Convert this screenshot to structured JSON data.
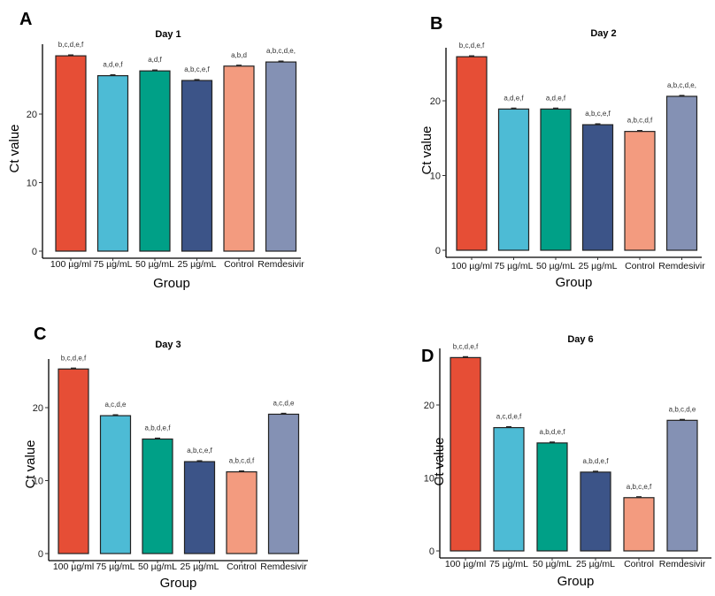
{
  "chart_data": [
    {
      "type": "bar",
      "panel": "A",
      "title": "Day 1",
      "xlabel": "Group",
      "ylabel": "Ct value",
      "categories": [
        "100 µg/mL",
        "75 µg/mL",
        "50 µg/mL",
        "25 µg/mL",
        "Control",
        "Remdesivir"
      ],
      "values": [
        28.5,
        25.6,
        26.3,
        24.9,
        27.0,
        27.6
      ],
      "annotations": [
        "b,c,d,e,f",
        "a,d,e,f",
        "a,d,f",
        "a,b,c,e,f",
        "a,b,d",
        "a,b,c,d,e,"
      ],
      "yticks": [
        0,
        10,
        20
      ],
      "ylim": [
        0,
        29.5
      ],
      "grid": false
    },
    {
      "type": "bar",
      "panel": "B",
      "title": "Day 2",
      "xlabel": "Group",
      "ylabel": "Ct value",
      "categories": [
        "100 µg/mL",
        "75 µg/mL",
        "50 µg/mL",
        "25 µg/mL",
        "Control",
        "Remdesivir"
      ],
      "values": [
        25.9,
        18.9,
        18.9,
        16.8,
        15.9,
        20.6
      ],
      "annotations": [
        "b,c,d,e,f",
        "a,d,e,f",
        "a,d,e,f",
        "a,b,c,e,f",
        "a,b,c,d,f",
        "a,b,c,d,e,"
      ],
      "yticks": [
        0,
        10,
        20
      ],
      "ylim": [
        0,
        27
      ],
      "grid": false
    },
    {
      "type": "bar",
      "panel": "C",
      "title": "Day  3",
      "xlabel": "Group",
      "ylabel": "Ct value",
      "categories": [
        "100 µg/mL",
        "75 µg/mL",
        "50 µg/mL",
        "25 µg/mL",
        "Control",
        "Remdesivir"
      ],
      "values": [
        25.3,
        18.9,
        15.7,
        12.6,
        11.2,
        19.1
      ],
      "annotations": [
        "b,c,d,e,f",
        "a,c,d,e",
        "a,b,d,e,f",
        "a,b,c,e,f",
        "a,b,c,d,f",
        "a,c,d,e"
      ],
      "yticks": [
        0,
        10,
        20
      ],
      "ylim": [
        0,
        26.5
      ],
      "grid": false
    },
    {
      "type": "bar",
      "panel": "D",
      "title": "Day 6",
      "xlabel": "Group",
      "ylabel": "Ct value",
      "categories": [
        "100 µg/mL",
        "75 µg/mL",
        "50 µg/mL",
        "25 µg/mL",
        "Control",
        "Remdesivir"
      ],
      "values": [
        26.5,
        16.9,
        14.8,
        10.8,
        7.3,
        17.9
      ],
      "annotations": [
        "b,c,d,e,f",
        "a,c,d,e,f",
        "a,b,d,e,f",
        "a,b,d,e,f",
        "a,b,c,e,f",
        "a,b,c,d,e"
      ],
      "yticks": [
        0,
        10,
        20
      ],
      "ylim": [
        0,
        27.5
      ],
      "grid": false
    }
  ],
  "colors": [
    "#E64E36",
    "#4DBBD5",
    "#00A087",
    "#3C5488",
    "#F39B7F",
    "#8491B4"
  ],
  "xtick_text": [
    "100 µg/ml",
    "75 µg/mL",
    "50 µg/mL",
    "25 µg/mL",
    "Control",
    "Remdesivir"
  ]
}
